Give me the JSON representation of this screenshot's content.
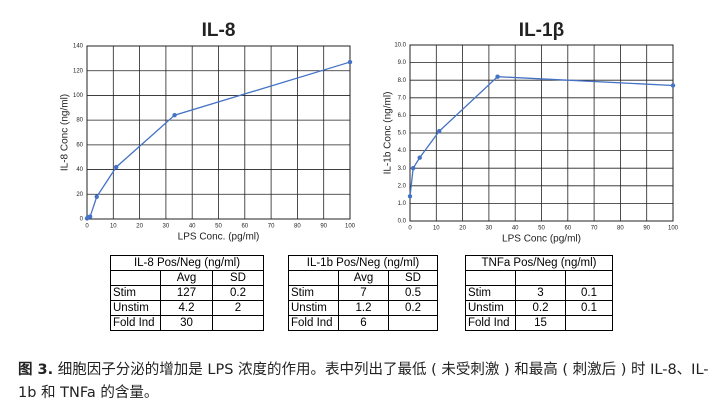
{
  "chart_data": [
    {
      "type": "line",
      "title": "IL-8",
      "xlabel": "LPS Conc. (pg/ml)",
      "ylabel": "IL-8 Conc (ng/ml)",
      "x": [
        0,
        0.4,
        1.2,
        3.7,
        11.1,
        33.3,
        100
      ],
      "values": [
        0.5,
        1.5,
        2,
        18,
        42,
        84,
        127
      ],
      "color": "#4472c4",
      "xlim": [
        0,
        100
      ],
      "xticks": [
        0,
        10,
        20,
        30,
        40,
        50,
        60,
        70,
        80,
        90,
        100
      ],
      "ylim": [
        0,
        140
      ],
      "yticks": [
        0,
        20,
        40,
        60,
        80,
        100,
        120,
        140
      ],
      "grid": true
    },
    {
      "type": "line",
      "title": "IL-1β",
      "xlabel": "LPS Conc (pg/ml)",
      "ylabel": "IL-1b Conc (ng/ml)",
      "x": [
        0,
        1.2,
        3.7,
        11.1,
        33.3,
        100
      ],
      "values": [
        1.4,
        3.0,
        3.6,
        5.1,
        8.2,
        7.7
      ],
      "color": "#4472c4",
      "xlim": [
        0,
        100
      ],
      "xticks": [
        0,
        10,
        20,
        30,
        40,
        50,
        60,
        70,
        80,
        90,
        100
      ],
      "ylim": [
        0,
        10
      ],
      "yticks": [
        {
          "value": 0,
          "label": "0.0"
        },
        {
          "value": 1,
          "label": "1.0"
        },
        {
          "value": 2,
          "label": "2.0"
        },
        {
          "value": 3,
          "label": "3.0"
        },
        {
          "value": 4,
          "label": "4.0"
        },
        {
          "value": 5,
          "label": "5.0"
        },
        {
          "value": 6,
          "label": "6.0"
        },
        {
          "value": 7,
          "label": "7.0"
        },
        {
          "value": 8,
          "label": "8.0"
        },
        {
          "value": 9,
          "label": "9.0"
        },
        {
          "value": 10,
          "label": "10.0"
        }
      ],
      "grid": true
    }
  ],
  "tables": [
    {
      "title": "IL-8 Pos/Neg (ng/ml)",
      "header": [
        null,
        "Avg",
        "SD"
      ],
      "rows": [
        [
          "Stim",
          "127",
          "0.2"
        ],
        [
          "Unstim",
          "4.2",
          "2"
        ],
        [
          "Fold Ind",
          "30",
          null
        ]
      ]
    },
    {
      "title": "IL-1b Pos/Neg (ng/ml)",
      "header": [
        null,
        "Avg",
        "SD"
      ],
      "rows": [
        [
          "Stim",
          "7",
          "0.5"
        ],
        [
          "Unstim",
          "1.2",
          "0.2"
        ],
        [
          "Fold Ind",
          "6",
          null
        ]
      ]
    },
    {
      "title": "TNFa Pos/Neg (ng/ml)",
      "header": [
        null,
        null,
        null
      ],
      "rows": [
        [
          "Stim",
          "3",
          "0.1"
        ],
        [
          "Unstim",
          "0.2",
          "0.1"
        ],
        [
          "Fold Ind",
          "15",
          null
        ]
      ]
    }
  ],
  "caption": {
    "label": "图 3.",
    "text": "细胞因子分泌的增加是 LPS 浓度的作用。表中列出了最低 ( 未受刺激 ) 和最高 ( 刺激后 ) 时 IL-8、IL- 1b 和 TNFa 的含量。"
  }
}
